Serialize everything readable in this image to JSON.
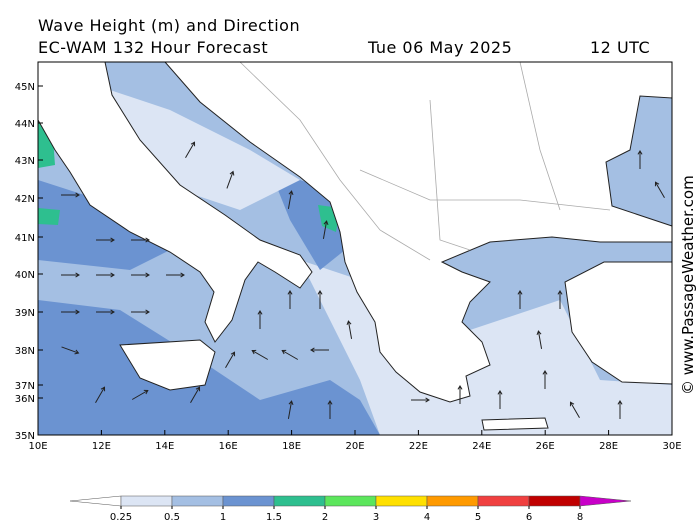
{
  "header": {
    "title": "Wave Height (m) and Direction",
    "model": "EC-WAM 132 Hour Forecast",
    "date": "Tue 06 May 2025",
    "time": "12 UTC"
  },
  "axes": {
    "lat_labels": [
      "45N",
      "44N",
      "43N",
      "42N",
      "41N",
      "40N",
      "39N",
      "38N",
      "37N",
      "36N",
      "35N"
    ],
    "lon_labels": [
      "10E",
      "12E",
      "14E",
      "16E",
      "18E",
      "20E",
      "22E",
      "24E",
      "26E",
      "28E",
      "30E"
    ]
  },
  "colorbar": {
    "ticks": [
      0.25,
      0.5,
      1,
      1.5,
      2,
      3,
      4,
      5,
      6,
      8
    ],
    "colors": [
      "#ffffff",
      "#dce5f4",
      "#a4bfe3",
      "#6b93d1",
      "#2ebf8f",
      "#5ce65c",
      "#ffe000",
      "#ff9a00",
      "#f04040",
      "#c00000",
      "#c800c8"
    ]
  },
  "credit": "© www.PassageWeather.com"
}
